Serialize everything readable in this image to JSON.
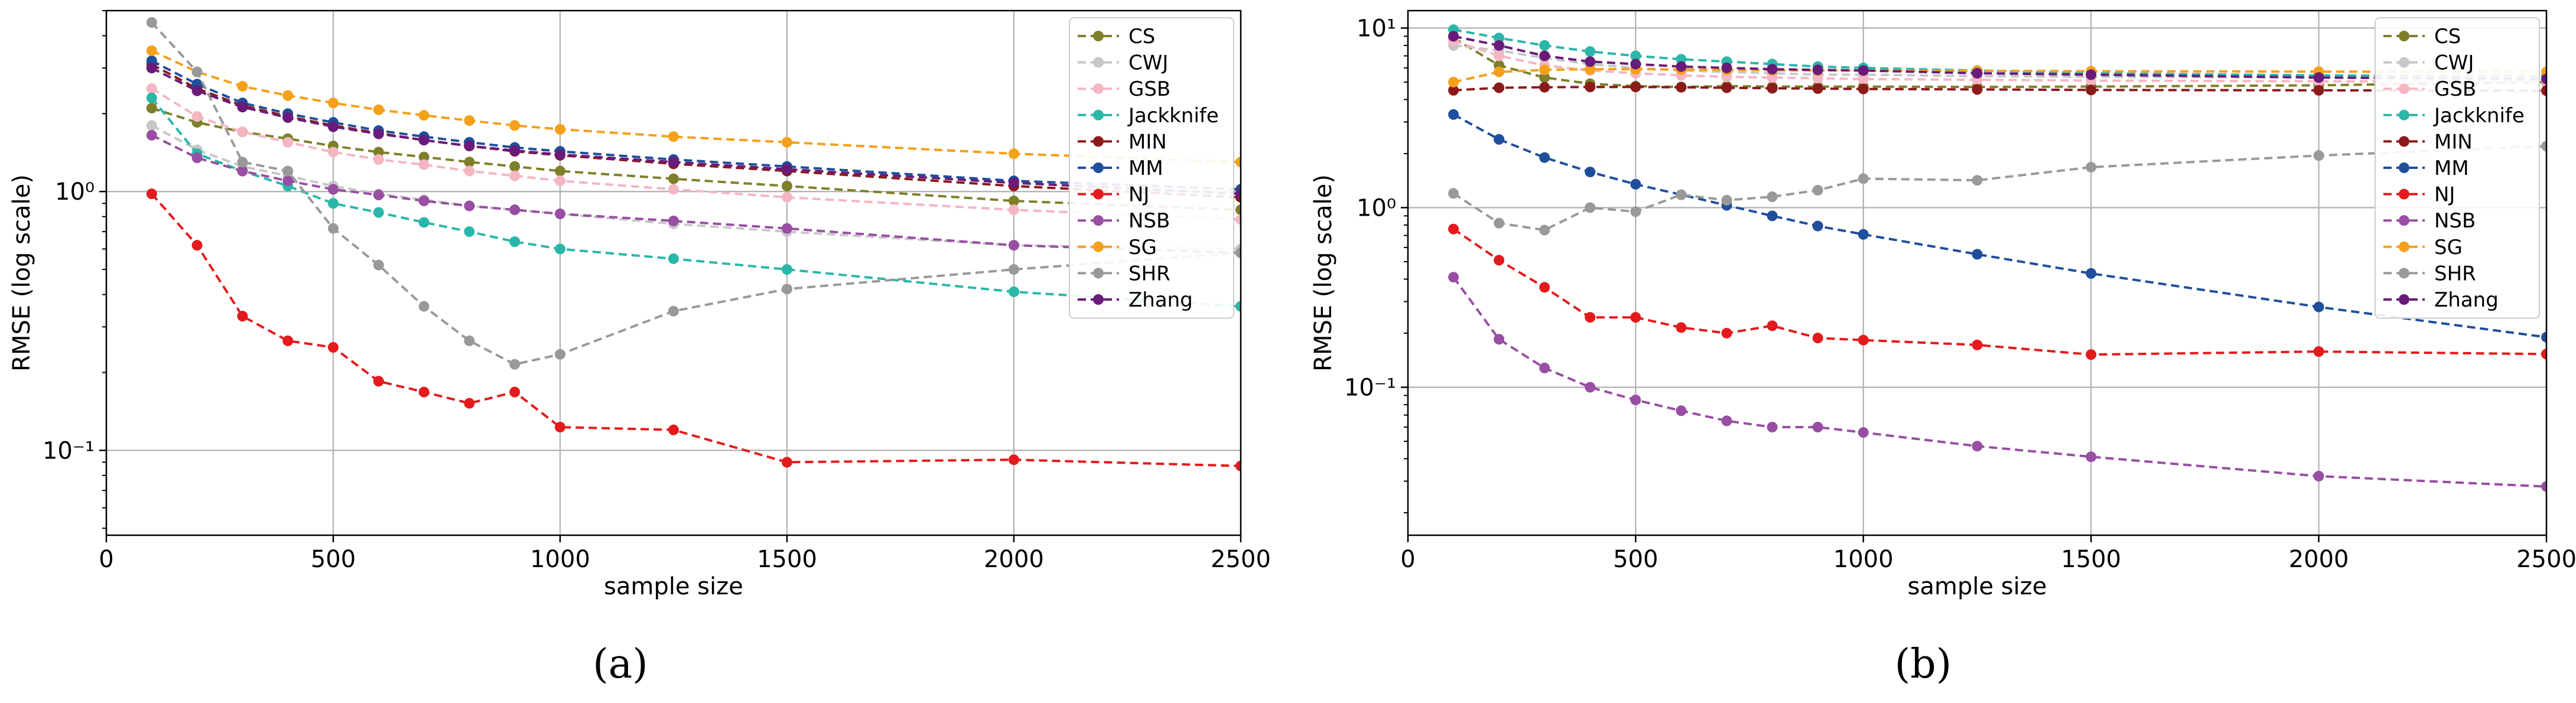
{
  "colors": {
    "CS": "#7f7f2a",
    "CWJ": "#c7c7c7",
    "GSB": "#f4b6c2",
    "Jackknife": "#2ab7a9",
    "MIN": "#8b1a1a",
    "MM": "#1f4e9c",
    "NJ": "#e41a1c",
    "NSB": "#984ea3",
    "SG": "#f5a01a",
    "SHR": "#999999",
    "Zhang": "#6a1b7a"
  },
  "chart_data": [
    {
      "type": "line",
      "panel_label": "(a)",
      "xlabel": "sample size",
      "ylabel": "RMSE (log scale)",
      "yscale": "log",
      "xlim": [
        0,
        2500
      ],
      "ylim": [
        0.047,
        5.0
      ],
      "x_ticks": [
        0,
        500,
        1000,
        1500,
        2000,
        2500
      ],
      "x_tick_labels": [
        "0",
        "500",
        "1000",
        "1500",
        "2000",
        "2500"
      ],
      "y_ticks": [
        0.1,
        1
      ],
      "y_tick_labels": [
        "10⁻¹",
        "10⁰"
      ],
      "grid": true,
      "legend_position": "top-right",
      "series": [
        {
          "name": "CS",
          "x": [
            100,
            200,
            300,
            400,
            500,
            600,
            700,
            800,
            900,
            1000,
            1250,
            1500,
            2000,
            2500
          ],
          "values": [
            2.1,
            1.85,
            1.7,
            1.6,
            1.5,
            1.42,
            1.36,
            1.3,
            1.25,
            1.2,
            1.12,
            1.05,
            0.92,
            0.85
          ]
        },
        {
          "name": "CWJ",
          "x": [
            100,
            200,
            300,
            400,
            500,
            600,
            700,
            800,
            900,
            1000,
            1250,
            1500,
            2000,
            2500
          ],
          "values": [
            1.8,
            1.45,
            1.25,
            1.15,
            1.05,
            0.98,
            0.93,
            0.88,
            0.85,
            0.82,
            0.75,
            0.7,
            0.62,
            0.6
          ]
        },
        {
          "name": "GSB",
          "x": [
            100,
            200,
            300,
            400,
            500,
            600,
            700,
            800,
            900,
            1000,
            1250,
            1500,
            2000,
            2500
          ],
          "values": [
            2.5,
            1.95,
            1.7,
            1.55,
            1.42,
            1.33,
            1.27,
            1.2,
            1.15,
            1.1,
            1.02,
            0.95,
            0.85,
            0.78
          ]
        },
        {
          "name": "Jackknife",
          "x": [
            100,
            200,
            300,
            400,
            500,
            600,
            700,
            800,
            900,
            1000,
            1250,
            1500,
            2000,
            2500
          ],
          "values": [
            2.3,
            1.4,
            1.2,
            1.05,
            0.9,
            0.83,
            0.76,
            0.7,
            0.64,
            0.6,
            0.55,
            0.5,
            0.41,
            0.36
          ]
        },
        {
          "name": "MIN",
          "x": [
            100,
            200,
            300,
            400,
            500,
            600,
            700,
            800,
            900,
            1000,
            1250,
            1500,
            2000,
            2500
          ],
          "values": [
            3.1,
            2.5,
            2.15,
            1.95,
            1.8,
            1.68,
            1.58,
            1.5,
            1.43,
            1.38,
            1.28,
            1.2,
            1.05,
            0.95
          ]
        },
        {
          "name": "MM",
          "x": [
            100,
            200,
            300,
            400,
            500,
            600,
            700,
            800,
            900,
            1000,
            1250,
            1500,
            2000,
            2500
          ],
          "values": [
            3.2,
            2.6,
            2.2,
            2.0,
            1.85,
            1.72,
            1.63,
            1.55,
            1.48,
            1.43,
            1.33,
            1.25,
            1.1,
            1.02
          ]
        },
        {
          "name": "NJ",
          "x": [
            100,
            200,
            300,
            400,
            500,
            600,
            700,
            800,
            900,
            1000,
            1250,
            1500,
            2000,
            2500
          ],
          "values": [
            0.98,
            0.62,
            0.33,
            0.265,
            0.25,
            0.185,
            0.168,
            0.152,
            0.168,
            0.123,
            0.12,
            0.09,
            0.092,
            0.087
          ]
        },
        {
          "name": "NSB",
          "x": [
            100,
            200,
            300,
            400,
            500,
            600,
            700,
            800,
            900,
            1000,
            1250,
            1500,
            2000,
            2500
          ],
          "values": [
            1.65,
            1.35,
            1.2,
            1.1,
            1.02,
            0.97,
            0.92,
            0.88,
            0.85,
            0.82,
            0.77,
            0.72,
            0.62,
            0.58
          ]
        },
        {
          "name": "SG",
          "x": [
            100,
            200,
            300,
            400,
            500,
            600,
            700,
            800,
            900,
            1000,
            1250,
            1500,
            2000,
            2500
          ],
          "values": [
            3.5,
            2.9,
            2.55,
            2.35,
            2.2,
            2.07,
            1.97,
            1.88,
            1.8,
            1.74,
            1.63,
            1.55,
            1.4,
            1.3
          ]
        },
        {
          "name": "SHR",
          "x": [
            100,
            200,
            300,
            400,
            500,
            600,
            700,
            800,
            900,
            1000,
            1250,
            1500,
            2000,
            2500
          ],
          "values": [
            4.5,
            2.9,
            1.3,
            1.2,
            0.72,
            0.52,
            0.36,
            0.265,
            0.215,
            0.235,
            0.345,
            0.42,
            0.5,
            0.58
          ]
        },
        {
          "name": "Zhang",
          "x": [
            100,
            200,
            300,
            400,
            500,
            600,
            700,
            800,
            900,
            1000,
            1250,
            1500,
            2000,
            2500
          ],
          "values": [
            3.0,
            2.45,
            2.12,
            1.93,
            1.78,
            1.67,
            1.58,
            1.5,
            1.44,
            1.39,
            1.3,
            1.22,
            1.08,
            0.98
          ]
        }
      ]
    },
    {
      "type": "line",
      "panel_label": "(b)",
      "xlabel": "sample size",
      "ylabel": "RMSE (log scale)",
      "yscale": "log",
      "xlim": [
        0,
        2500
      ],
      "ylim": [
        0.015,
        12.5
      ],
      "x_ticks": [
        0,
        500,
        1000,
        1500,
        2000,
        2500
      ],
      "x_tick_labels": [
        "0",
        "500",
        "1000",
        "1500",
        "2000",
        "2500"
      ],
      "y_ticks": [
        0.1,
        1,
        10
      ],
      "y_tick_labels": [
        "10⁻¹",
        "10⁰",
        "10¹"
      ],
      "grid": true,
      "legend_position": "top-right",
      "series": [
        {
          "name": "CS",
          "x": [
            100,
            200,
            300,
            400,
            500,
            600,
            700,
            800,
            900,
            1000,
            1250,
            1500,
            2000,
            2500
          ],
          "values": [
            8.8,
            6.2,
            5.3,
            4.9,
            4.75,
            4.7,
            4.75,
            4.72,
            4.72,
            4.72,
            4.7,
            4.72,
            4.8,
            5.0
          ]
        },
        {
          "name": "CWJ",
          "x": [
            100,
            200,
            300,
            400,
            500,
            600,
            700,
            800,
            900,
            1000,
            1250,
            1500,
            2000,
            2500
          ],
          "values": [
            8.0,
            7.5,
            6.8,
            6.3,
            6.0,
            5.8,
            5.7,
            5.6,
            5.5,
            5.5,
            5.4,
            5.35,
            5.3,
            5.3
          ]
        },
        {
          "name": "GSB",
          "x": [
            100,
            200,
            300,
            400,
            500,
            600,
            700,
            800,
            900,
            1000,
            1250,
            1500,
            2000,
            2500
          ],
          "values": [
            8.5,
            7.0,
            6.2,
            5.8,
            5.6,
            5.45,
            5.35,
            5.3,
            5.25,
            5.2,
            5.15,
            5.1,
            5.05,
            5.05
          ]
        },
        {
          "name": "Jackknife",
          "x": [
            100,
            200,
            300,
            400,
            500,
            600,
            700,
            800,
            900,
            1000,
            1250,
            1500,
            2000,
            2500
          ],
          "values": [
            9.8,
            8.8,
            8.0,
            7.4,
            7.0,
            6.7,
            6.5,
            6.3,
            6.1,
            6.0,
            5.8,
            5.6,
            5.45,
            5.4
          ]
        },
        {
          "name": "MIN",
          "x": [
            100,
            200,
            300,
            400,
            500,
            600,
            700,
            800,
            900,
            1000,
            1250,
            1500,
            2000,
            2500
          ],
          "values": [
            4.5,
            4.65,
            4.68,
            4.7,
            4.7,
            4.68,
            4.65,
            4.62,
            4.6,
            4.58,
            4.55,
            4.52,
            4.5,
            4.48
          ]
        },
        {
          "name": "MM",
          "x": [
            100,
            200,
            300,
            400,
            500,
            600,
            700,
            800,
            900,
            1000,
            1250,
            1500,
            2000,
            2500
          ],
          "values": [
            3.3,
            2.4,
            1.9,
            1.58,
            1.35,
            1.18,
            1.03,
            0.9,
            0.79,
            0.71,
            0.55,
            0.43,
            0.28,
            0.19
          ]
        },
        {
          "name": "NJ",
          "x": [
            100,
            200,
            300,
            400,
            500,
            600,
            700,
            800,
            900,
            1000,
            1250,
            1500,
            2000,
            2500
          ],
          "values": [
            0.76,
            0.51,
            0.36,
            0.245,
            0.245,
            0.215,
            0.2,
            0.22,
            0.188,
            0.183,
            0.172,
            0.152,
            0.158,
            0.153
          ]
        },
        {
          "name": "NSB",
          "x": [
            100,
            200,
            300,
            400,
            500,
            600,
            700,
            800,
            900,
            1000,
            1250,
            1500,
            2000,
            2500
          ],
          "values": [
            0.41,
            0.185,
            0.128,
            0.1,
            0.085,
            0.074,
            0.065,
            0.06,
            0.06,
            0.056,
            0.047,
            0.041,
            0.032,
            0.028
          ]
        },
        {
          "name": "SG",
          "x": [
            100,
            200,
            300,
            400,
            500,
            600,
            700,
            800,
            900,
            1000,
            1250,
            1500,
            2000,
            2500
          ],
          "values": [
            5.0,
            5.7,
            5.85,
            5.9,
            5.9,
            5.88,
            5.85,
            5.82,
            5.8,
            5.8,
            5.78,
            5.75,
            5.72,
            5.7
          ]
        },
        {
          "name": "SHR",
          "x": [
            100,
            200,
            300,
            400,
            500,
            600,
            700,
            800,
            900,
            1000,
            1250,
            1500,
            2000,
            2500
          ],
          "values": [
            1.2,
            0.82,
            0.75,
            1.0,
            0.95,
            1.18,
            1.1,
            1.15,
            1.25,
            1.45,
            1.42,
            1.68,
            1.95,
            2.2
          ]
        },
        {
          "name": "Zhang",
          "x": [
            100,
            200,
            300,
            400,
            500,
            600,
            700,
            800,
            900,
            1000,
            1250,
            1500,
            2000,
            2500
          ],
          "values": [
            9.0,
            8.0,
            7.0,
            6.5,
            6.3,
            6.1,
            6.0,
            5.9,
            5.85,
            5.8,
            5.6,
            5.5,
            5.3,
            5.2
          ]
        }
      ]
    }
  ]
}
